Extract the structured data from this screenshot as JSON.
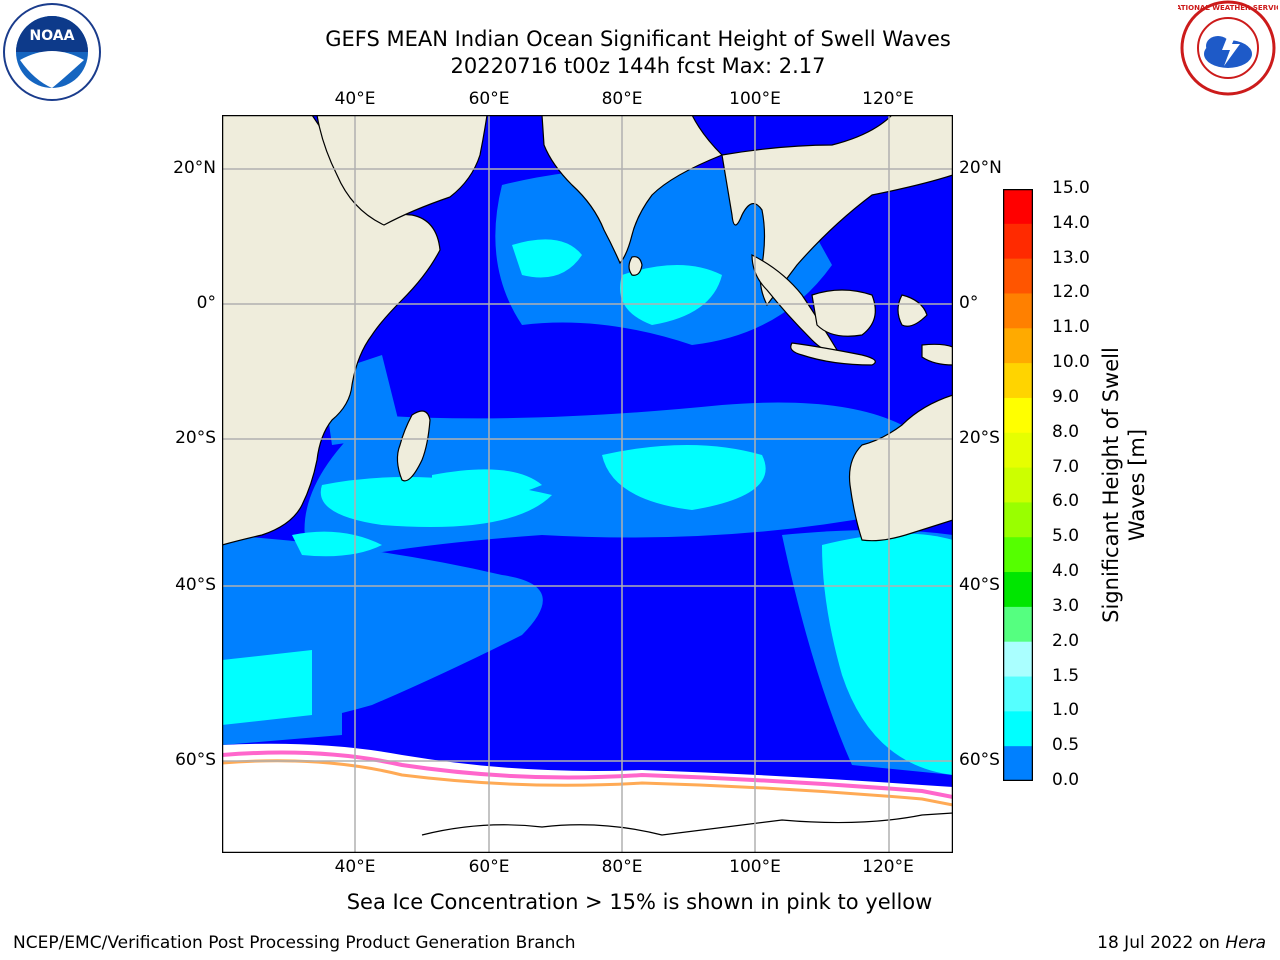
{
  "title": {
    "line1": "GEFS MEAN Indian Ocean Significant Height of Swell Waves",
    "line2": "20220716 t00z 144h fcst   Max: 2.17"
  },
  "logos": {
    "left": {
      "name": "noaa-logo",
      "text": "NOAA"
    },
    "right": {
      "name": "nws-logo",
      "text": "NATIONAL WEATHER SERVICE"
    }
  },
  "map": {
    "lon_labels": [
      "40°E",
      "60°E",
      "80°E",
      "100°E",
      "120°E"
    ],
    "lat_labels": [
      "20°N",
      "0°",
      "20°S",
      "40°S",
      "60°S"
    ],
    "extent": {
      "lon": [
        20,
        130
      ],
      "lat": [
        -70,
        28
      ]
    },
    "colors": {
      "land": "#efeddc",
      "ocean_low": "#0000ff",
      "ocean_mid": "#0080ff",
      "ocean_high": "#00ffff",
      "ice": "#ffffff",
      "grid": "#b0b0b0"
    }
  },
  "colorbar": {
    "label": "Significant Height of Swell Waves [m]",
    "ticks": [
      "15.0",
      "14.0",
      "13.0",
      "12.0",
      "11.0",
      "10.0",
      "9.0",
      "8.0",
      "7.0",
      "6.0",
      "5.0",
      "4.0",
      "3.0",
      "2.0",
      "1.5",
      "1.0",
      "0.5",
      "0.0"
    ],
    "colors": [
      "#ff0000",
      "#ff2a00",
      "#ff5500",
      "#ff8000",
      "#ffaa00",
      "#ffd400",
      "#ffff00",
      "#e6ff00",
      "#ccff00",
      "#99ff00",
      "#55ff00",
      "#00e600",
      "#55ff80",
      "#aaffff",
      "#55ffff",
      "#00ffff",
      "#0080ff",
      "#0000ff"
    ]
  },
  "ice_note": "Sea Ice Concentration > 15% is shown in pink to yellow",
  "footer": {
    "left": "NCEP/EMC/Verification Post Processing Product Generation Branch",
    "right_date": "18 Jul 2022 on ",
    "right_host": "Hera"
  }
}
